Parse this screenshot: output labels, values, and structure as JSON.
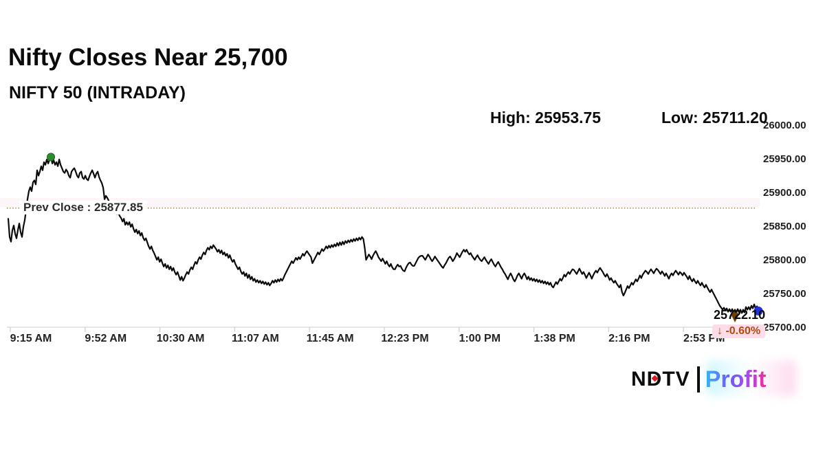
{
  "header": {
    "title": "Nifty Closes Near 25,700",
    "subtitle": "NIFTY 50 (INTRADAY)"
  },
  "stats": {
    "high_text": "High: 25953.75",
    "low_text": "Low: 25711.20"
  },
  "chart_data": {
    "type": "line",
    "title": "NIFTY 50 (INTRADAY)",
    "legend": "none",
    "grid": "off",
    "ylim": [
      25700,
      26000
    ],
    "y_ticks": [
      {
        "label": "26000.00",
        "value": 26000
      },
      {
        "label": "25950.00",
        "value": 25950
      },
      {
        "label": "25900.00",
        "value": 25900
      },
      {
        "label": "25850.00",
        "value": 25850
      },
      {
        "label": "25800.00",
        "value": 25800
      },
      {
        "label": "25750.00",
        "value": 25750
      },
      {
        "label": "25700.00",
        "value": 25700
      }
    ],
    "x_labels": [
      "9:15 AM",
      "9:52 AM",
      "10:30 AM",
      "11:07 AM",
      "11:45 AM",
      "12:23 PM",
      "1:00 PM",
      "1:38 PM",
      "2:16 PM",
      "2:53 PM"
    ],
    "high": 25953.75,
    "low": 25711.2,
    "prev_close": {
      "label": "Prev Close : 25877.85",
      "value": 25877.85
    },
    "last": {
      "price_text": "25722.10",
      "price": 25722.1,
      "change_text": "↓ -0.60%",
      "change_pct": -0.6,
      "direction": "down"
    },
    "series": [
      {
        "name": "NIFTY 50",
        "prices": [
          25862,
          25835,
          25828,
          25845,
          25852,
          25840,
          25833,
          25845,
          25855,
          25842,
          25835,
          25850,
          25860,
          25875,
          25891,
          25903,
          25909,
          25903,
          25916,
          25919,
          25913,
          25934,
          25926,
          25932,
          25940,
          25934,
          25946,
          25942,
          25950,
          25944,
          25950,
          25953.75,
          25944,
          25949,
          25942,
          25946,
          25940,
          25950,
          25942,
          25937,
          25932,
          25930,
          25935,
          25932,
          25926,
          25923,
          25932,
          25935,
          25937,
          25932,
          25926,
          25923,
          25930,
          25932,
          25923,
          25921,
          25926,
          25921,
          25919,
          25925,
          25930,
          25934,
          25929,
          25923,
          25929,
          25932,
          25924,
          25919,
          25915,
          25908,
          25891,
          25896,
          25893,
          25889,
          25883,
          25872,
          25875,
          25870,
          25873,
          25869,
          25871,
          25866,
          25863,
          25858,
          25862,
          25853,
          25857,
          25853,
          25857,
          25850,
          25854,
          25847,
          25842,
          25846,
          25840,
          25844,
          25837,
          25841,
          25834,
          25830,
          25833,
          25827,
          25821,
          25817,
          25821,
          25815,
          25811,
          25806,
          25801,
          25805,
          25798,
          25802,
          25796,
          25791,
          25795,
          25789,
          25793,
          25787,
          25791,
          25785,
          25789,
          25783,
          25779,
          25783,
          25777,
          25771,
          25776,
          25770,
          25774,
          25779,
          25783,
          25780,
          25786,
          25790,
          25787,
          25793,
          25798,
          25795,
          25801,
          25805,
          25802,
          25808,
          25812,
          25809,
          25815,
          25819,
          25816,
          25821,
          25818,
          25823,
          25820,
          25817,
          25813,
          25816,
          25811,
          25815,
          25809,
          25812,
          25807,
          25810,
          25804,
          25808,
          25802,
          25798,
          25801,
          25795,
          25791,
          25787,
          25790,
          25784,
          25780,
          25783,
          25777,
          25781,
          25774,
          25779,
          25772,
          25776,
          25770,
          25773,
          25768,
          25771,
          25767,
          25770,
          25766,
          25769,
          25765,
          25768,
          25764,
          25767,
          25763,
          25766,
          25770,
          25767,
          25771,
          25768,
          25772,
          25769,
          25773,
          25770,
          25774,
          25779,
          25783,
          25787,
          25791,
          25795,
          25799,
          25796,
          25800,
          25804,
          25801,
          25805,
          25802,
          25806,
          25810,
          25807,
          25811,
          25814,
          25811,
          25808,
          25805,
          25796,
          25800,
          25804,
          25808,
          25812,
          25809,
          25813,
          25817,
          25814,
          25817,
          25821,
          25818,
          25822,
          25819,
          25823,
          25820,
          25824,
          25821,
          25826,
          25822,
          25827,
          25823,
          25828,
          25824,
          25829,
          25826,
          25830,
          25827,
          25831,
          25828,
          25832,
          25829,
          25833,
          25830,
          25834,
          25831,
          25835,
          25832,
          25819,
          25801,
          25805,
          25809,
          25806,
          25802,
          25807,
          25811,
          25814,
          25810,
          25805,
          25802,
          25799,
          25803,
          25799,
          25795,
          25799,
          25794,
          25791,
          25795,
          25790,
          25787,
          25787,
          25791,
          25794,
          25791,
          25792,
          25788,
          25785,
          25784,
          25789,
          25793,
          25796,
          25797,
          25794,
          25792,
          25792,
          25796,
          25800,
          25804,
          25806,
          25807,
          25807,
          25804,
          25801,
          25805,
          25809,
          25806,
          25802,
          25799,
          25802,
          25806,
          25803,
          25800,
          25797,
          25794,
          25791,
          25789,
          25793,
          25796,
          25800,
          25804,
          25806,
          25803,
          25799,
          25802,
          25806,
          25811,
          25808,
          25805,
          25809,
          25813,
          25816,
          25813,
          25816,
          25812,
          25809,
          25811,
          25807,
          25804,
          25801,
          25805,
          25808,
          25804,
          25801,
          25799,
          25802,
          25805,
          25801,
          25798,
          25795,
          25799,
          25802,
          25798,
          25794,
          25791,
          25795,
          25798,
          25794,
          25790,
          25787,
          25783,
          25780,
          25776,
          25772,
          25777,
          25781,
          25777,
          25772,
          25769,
          25773,
          25778,
          25781,
          25777,
          25773,
          25778,
          25781,
          25777,
          25772,
          25776,
          25771,
          25774,
          25770,
          25773,
          25769,
          25772,
          25768,
          25771,
          25767,
          25770,
          25766,
          25769,
          25765,
          25768,
          25764,
          25767,
          25762,
          25760,
          25764,
          25768,
          25765,
          25769,
          25773,
          25770,
          25774,
          25779,
          25776,
          25780,
          25783,
          25780,
          25784,
          25787,
          25786,
          25783,
          25780,
          25784,
          25788,
          25784,
          25780,
          25783,
          25779,
          25774,
          25778,
          25782,
          25778,
          25773,
          25778,
          25782,
          25785,
          25782,
          25786,
          25789,
          25786,
          25783,
          25779,
          25776,
          25780,
          25776,
          25771,
          25774,
          25770,
          25767,
          25770,
          25766,
          25763,
          25760,
          25764,
          25753,
          25748,
          25752,
          25757,
          25762,
          25759,
          25763,
          25767,
          25764,
          25768,
          25772,
          25769,
          25773,
          25778,
          25774,
          25779,
          25782,
          25785,
          25783,
          25780,
          25784,
          25787,
          25784,
          25781,
          25785,
          25788,
          25786,
          25783,
          25780,
          25784,
          25781,
          25777,
          25781,
          25777,
          25773,
          25778,
          25781,
          25778,
          25782,
          25785,
          25782,
          25779,
          25783,
          25781,
          25778,
          25782,
          25779,
          25776,
          25772,
          25777,
          25772,
          25769,
          25773,
          25769,
          25766,
          25770,
          25766,
          25763,
          25767,
          25763,
          25760,
          25764,
          25760,
          25756,
          25753,
          25757,
          25753,
          25749,
          25745,
          25741,
          25737,
          25733,
          25730,
          25727,
          25730,
          25726,
          25729,
          25724,
          25728,
          25724,
          25728,
          25723,
          25727,
          25723,
          25728,
          25723,
          25727,
          25722,
          25727,
          25723,
          25731,
          25727,
          25731,
          25727,
          25733,
          25729,
          25735,
          25729,
          25732,
          25722.1
        ]
      }
    ],
    "colors": {
      "line": "#0b0b0b",
      "prev_close_line": "#a3885a",
      "high_marker": "#2e8b2e",
      "end_marker": "#2230dd",
      "price_pin": "#6e4005",
      "change_text": "#b34a0e",
      "change_badge_bg": "#fbdce8",
      "axis": "#d6d6d6"
    }
  },
  "footer": {
    "brand_left": "NDTV",
    "brand_right": "Profit"
  }
}
